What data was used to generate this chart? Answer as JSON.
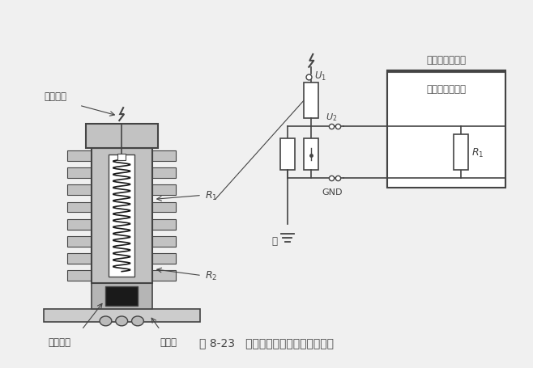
{
  "title": "图 8-23   基于电阻分压器的电压传感器",
  "bg_color": "#f2f2f2",
  "line_color": "#444444",
  "gray_fill": "#c0c0c0",
  "dark_fill": "#555555",
  "black_fill": "#1a1a1a",
  "white_fill": "#ffffff",
  "labels": {
    "primary_conn": "一次连接",
    "secondary_conn": "二次连接",
    "mounting_plate": "安装板",
    "R1_left": "$R_1$",
    "R2_left": "$R_2$",
    "U1": "$U_1$",
    "U2": "$U_2$",
    "GND": "GND",
    "ground": "地",
    "protection": "保护和控制设备",
    "R1_right": "$R_1$"
  }
}
